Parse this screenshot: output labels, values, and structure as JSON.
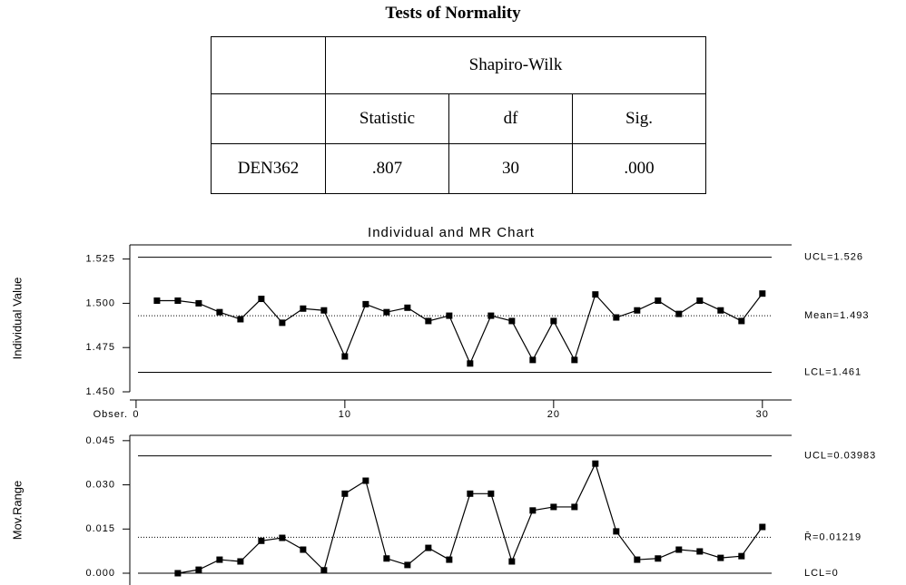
{
  "table": {
    "title": "Tests of Normality",
    "group_header": "Shapiro-Wilk",
    "columns": [
      "Statistic",
      "df",
      "Sig."
    ],
    "rows": [
      [
        "DEN362",
        ".807",
        "30",
        ".000"
      ]
    ]
  },
  "chart_data": [
    {
      "type": "line",
      "title": "Individual and MR Chart",
      "ylabel": "Individual Value",
      "xlabel": "Obser.",
      "color": "#000000",
      "x": [
        1,
        2,
        3,
        4,
        5,
        6,
        7,
        8,
        9,
        10,
        11,
        12,
        13,
        14,
        15,
        16,
        17,
        18,
        19,
        20,
        21,
        22,
        23,
        24,
        25,
        26,
        27,
        28,
        29,
        30
      ],
      "values": [
        1.5015,
        1.5015,
        1.5,
        1.495,
        1.491,
        1.5025,
        1.489,
        1.497,
        1.496,
        1.47,
        1.4995,
        1.495,
        1.4975,
        1.49,
        1.493,
        1.466,
        1.493,
        1.49,
        1.468,
        1.49,
        1.468,
        1.505,
        1.492,
        1.496,
        1.5015,
        1.494,
        1.5015,
        1.496,
        1.49,
        1.5055
      ],
      "xlim": [
        -0.3,
        31.4
      ],
      "ylim": [
        1.45,
        1.533
      ],
      "xticks": [
        0,
        10,
        20,
        30
      ],
      "yticks": [
        {
          "value": 1.45,
          "label": "1.450"
        },
        1.475,
        {
          "value": 1.5,
          "label": "1.500"
        },
        1.525
      ],
      "control_lines": [
        {
          "label": "UCL=1.526",
          "value": 1.526,
          "style": "solid"
        },
        {
          "label": "Mean=1.493",
          "value": 1.493,
          "style": "dotted"
        },
        {
          "label": "LCL=1.461",
          "value": 1.461,
          "style": "solid"
        }
      ]
    },
    {
      "type": "line",
      "ylabel": "Mov.Range",
      "color": "#000000",
      "x": [
        2,
        3,
        4,
        5,
        6,
        7,
        8,
        9,
        10,
        11,
        12,
        13,
        14,
        15,
        16,
        17,
        18,
        19,
        20,
        21,
        22,
        23,
        24,
        25,
        26,
        27,
        28,
        29,
        30
      ],
      "values": [
        0.0,
        0.0012,
        0.0046,
        0.004,
        0.011,
        0.012,
        0.008,
        0.001,
        0.027,
        0.0314,
        0.005,
        0.0028,
        0.0086,
        0.0046,
        0.027,
        0.027,
        0.004,
        0.0213,
        0.0225,
        0.0225,
        0.0372,
        0.0142,
        0.0046,
        0.005,
        0.008,
        0.0074,
        0.0052,
        0.0058,
        0.0157
      ],
      "xlim": [
        -0.3,
        31.4
      ],
      "ylim": [
        -0.004,
        0.0468
      ],
      "yticks": [
        {
          "value": 0,
          "label": "0.000"
        },
        {
          "value": 0.015,
          "label": "0.015"
        },
        {
          "value": 0.03,
          "label": "0.030"
        },
        {
          "value": 0.045,
          "label": "0.045"
        }
      ],
      "control_lines": [
        {
          "label": "UCL=0.03983",
          "value": 0.03983,
          "style": "solid"
        },
        {
          "label": "R̄=0.01219",
          "value": 0.01219,
          "style": "dotted"
        },
        {
          "label": "LCL=0",
          "value": 0,
          "style": "solid"
        }
      ]
    }
  ]
}
